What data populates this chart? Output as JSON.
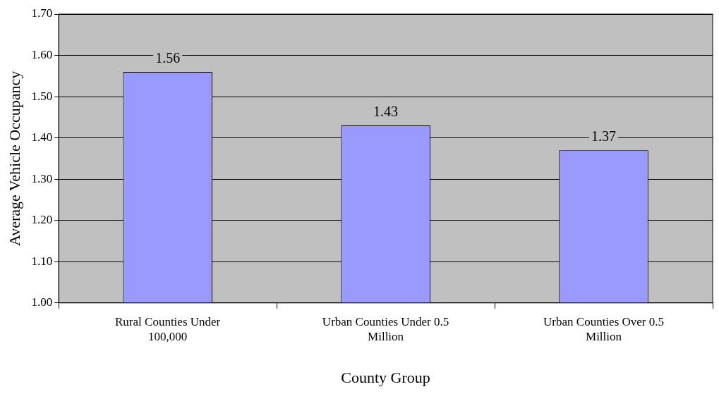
{
  "chart_data": {
    "type": "bar",
    "xlabel": "County Group",
    "ylabel": "Average Vehicle Occupancy",
    "categories": [
      "Rural Counties Under 100,000",
      "Urban Counties Under 0.5 Million",
      "Urban Counties Over 0.5 Million"
    ],
    "values": [
      1.56,
      1.43,
      1.37
    ],
    "color": "#9999ff",
    "ylim": [
      1.0,
      1.7
    ],
    "yticks": [
      {
        "value": 1.0,
        "label": "1.00"
      },
      {
        "value": 1.1,
        "label": "1.10"
      },
      {
        "value": 1.2,
        "label": "1.20"
      },
      {
        "value": 1.3,
        "label": "1.30"
      },
      {
        "value": 1.4,
        "label": "1.40"
      },
      {
        "value": 1.5,
        "label": "1.50"
      },
      {
        "value": 1.6,
        "label": "1.60"
      },
      {
        "value": 1.7,
        "label": "1.70"
      }
    ],
    "grid": "y",
    "data_labels": true,
    "legend": false
  }
}
